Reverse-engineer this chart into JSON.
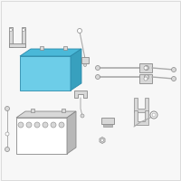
{
  "bg_color": "#f7f7f7",
  "border_color": "#d0d0d0",
  "highlight_fill": "#6dcde8",
  "highlight_top": "#4ab8d8",
  "highlight_right": "#38a0be",
  "highlight_edge": "#2a8aaa",
  "part_fill": "#d8d8d8",
  "part_mid": "#b8b8b8",
  "part_dark": "#989898",
  "part_edge": "#888888",
  "line_col": "#aaaaaa",
  "white": "#ffffff"
}
